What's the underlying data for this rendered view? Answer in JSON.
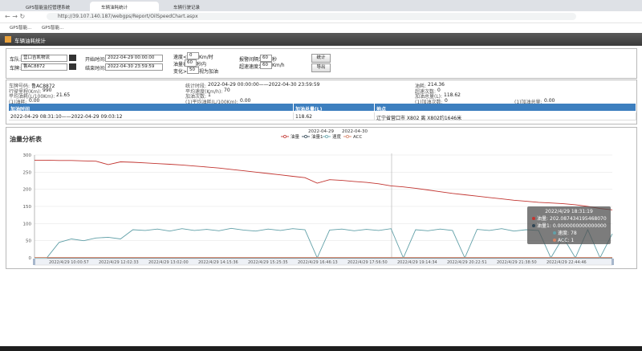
{
  "browser": {
    "tabs": [
      "GPS智能监控管理系统",
      "车辆油耗统计",
      "车辆行驶记录"
    ],
    "url": "http://39.107.140.187/webgps/Report/OilSpeedChart.aspx",
    "bookmarks": [
      "GPS智能...",
      "GPS智能..."
    ]
  },
  "header": {
    "title": "车辆油耗统计"
  },
  "form": {
    "fleet_label": "车队:",
    "fleet": "营口吉凯物流",
    "plate_label": "车牌:",
    "plate": "鲁AC8872",
    "start_label": "开始时间:",
    "start": "2022-04-29 00:00:00",
    "end_label": "结束时间:",
    "end": "2022-04-30 23:59:59",
    "speed_label": "速度<=",
    "speed": "0",
    "speed_unit": "Km/时",
    "oil_label": "油量在",
    "oil_seconds": "60",
    "oil_unit": "秒内",
    "change_label": "变化>=",
    "change": "50",
    "change_unit": "视为加油",
    "alarm_label": "报警间隔为",
    "alarm": "60",
    "alarm_unit": "秒",
    "overspeed_label": "超速速度为",
    "overspeed": "60",
    "overspeed_unit": "Km/h",
    "buttons": [
      "统计",
      "导出"
    ]
  },
  "summary": {
    "rows": [
      [
        {
          "label": "车牌号码:",
          "value": "鲁AC8872"
        },
        {
          "label": "统计时段:",
          "value": "2022-04-29 00:00:00——2022-04-30 23:59:59"
        },
        {
          "label": "油耗:",
          "value": "214.36"
        }
      ],
      [
        {
          "label": "行驶里程(Km):",
          "value": "990"
        },
        {
          "label": "平均速度(Km/h):",
          "value": "70"
        },
        {
          "label": "超速次数:",
          "value": "0"
        }
      ],
      [
        {
          "label": "平均油耗(L/100Km):",
          "value": "21.65"
        },
        {
          "label": "加油次数:",
          "value": "1"
        },
        {
          "label": "加油总量(L):",
          "value": "118.62"
        }
      ],
      [
        {
          "label": "(1)油耗:",
          "value": "0.00"
        },
        {
          "label": "(1)平均油耗(L/100Km):",
          "value": "0.00"
        },
        {
          "label": "(1)加油次数:",
          "value": "0"
        },
        {
          "label": "(1)加油总量:",
          "value": "0.00"
        }
      ]
    ]
  },
  "refuel_table": {
    "headers": [
      "加油时间",
      "加油总量(L)",
      "地点"
    ],
    "rows": [
      [
        "2022-04-29 08:31:10——2022-04-29 09:03:12",
        "118.62",
        "辽宁省营口市 X802 离 X802约1646米"
      ]
    ]
  },
  "chart": {
    "title": "油量分析表",
    "dates": [
      "2022-04-29",
      "2022-04-30"
    ],
    "series": [
      {
        "name": "油量",
        "color": "#c23531",
        "values": [
          285,
          285,
          284,
          284,
          283,
          282,
          272,
          280,
          279,
          277,
          275,
          273,
          271,
          268,
          265,
          262,
          258,
          254,
          250,
          246,
          242,
          238,
          234,
          218,
          228,
          226,
          223,
          220,
          216,
          210,
          207,
          203,
          198,
          193,
          188,
          184,
          180,
          176,
          172,
          168,
          165,
          162,
          160,
          158,
          155,
          150,
          144,
          140
        ]
      },
      {
        "name": "油量1",
        "color": "#2f4554",
        "values": [
          0,
          0,
          0,
          0,
          0,
          0,
          0,
          0,
          0,
          0,
          0,
          0,
          0,
          0,
          0,
          0,
          0,
          0,
          0,
          0,
          0,
          0,
          0,
          0,
          0,
          0,
          0,
          0,
          0,
          0,
          0,
          0,
          0,
          0,
          0,
          0,
          0,
          0,
          0,
          0,
          0,
          0,
          0,
          0,
          0,
          0,
          0,
          0
        ]
      },
      {
        "name": "速度",
        "color": "#61a0a8",
        "values": [
          0,
          0,
          45,
          55,
          50,
          58,
          60,
          55,
          82,
          80,
          84,
          78,
          85,
          80,
          83,
          79,
          86,
          81,
          78,
          84,
          80,
          85,
          82,
          0,
          81,
          84,
          79,
          83,
          80,
          85,
          0,
          82,
          79,
          84,
          80,
          0,
          83,
          80,
          85,
          78,
          82,
          80,
          0,
          60,
          0,
          82,
          0,
          70
        ]
      },
      {
        "name": "ACC",
        "color": "#d48265",
        "values": [
          1,
          1,
          1,
          1,
          1,
          1,
          1,
          1,
          1,
          1,
          1,
          1,
          1,
          1,
          1,
          1,
          1,
          1,
          1,
          1,
          1,
          1,
          1,
          1,
          1,
          1,
          1,
          1,
          1,
          1,
          1,
          1,
          1,
          1,
          1,
          1,
          1,
          1,
          1,
          1,
          1,
          1,
          1,
          1,
          1,
          1,
          1,
          1
        ]
      }
    ],
    "ylim": [
      0,
      300
    ],
    "yticks": [
      0,
      50,
      100,
      150,
      200,
      250,
      300
    ],
    "x_labels": [
      "2022/4/29 10:00:57",
      "2022/4/29 12:02:33",
      "2022/4/29 13:02:00",
      "2022/4/29 14:15:36",
      "2022/4/29 15:25:35",
      "2022/4/29 16:46:13",
      "2022/4/29 17:56:50",
      "2022/4/29 19:14:34",
      "2022/4/29 20:22:51",
      "2022/4/29 21:38:50",
      "2022/4/29 22:44:46"
    ],
    "tooltip": {
      "time": "2022/4/29 18:31:19",
      "rows": [
        {
          "label": "油量:",
          "value": "202.087434195468070"
        },
        {
          "label": "油量1:",
          "value": "0.0000000000000000"
        },
        {
          "label": "速度:",
          "value": "78"
        },
        {
          "label": "ACC:",
          "value": "1"
        }
      ]
    }
  }
}
